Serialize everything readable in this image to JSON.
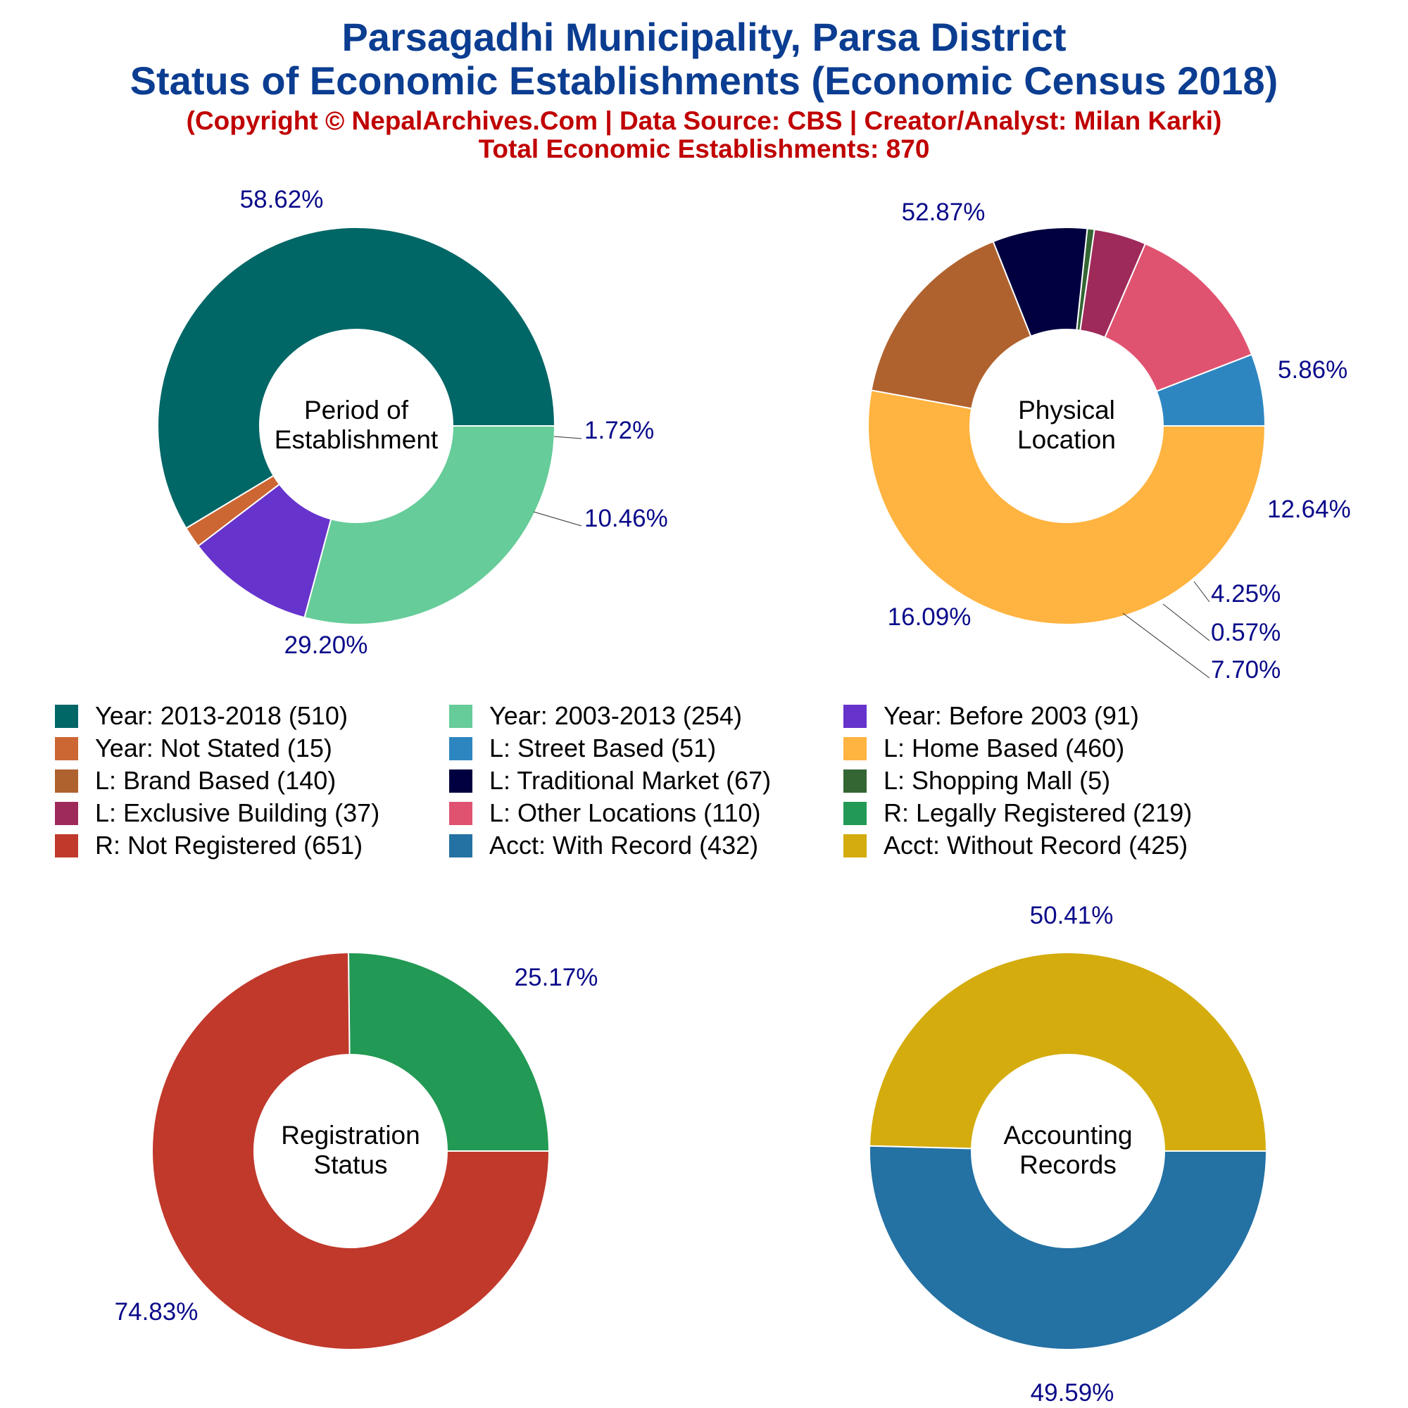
{
  "header": {
    "title_line1": "Parsagadhi Municipality, Parsa District",
    "title_line2": "Status of Economic Establishments (Economic Census 2018)",
    "copyright": "(Copyright © NepalArchives.Com | Data Source: CBS | Creator/Analyst: Milan Karki)",
    "total": "Total Economic Establishments: 870"
  },
  "colors": {
    "title": "#0b3d91",
    "subtitle": "#c00000",
    "percent_label": "#0a0a8a"
  },
  "chart_data": [
    {
      "type": "pie",
      "style": "donut",
      "center_label": [
        "Period of",
        "Establishment"
      ],
      "slices": [
        {
          "label": "Year: 2013-2018",
          "value": 510,
          "percent_label": "58.62%",
          "color": "#006666"
        },
        {
          "label": "Year: Not Stated",
          "value": 15,
          "percent_label": "1.72%",
          "color": "#cc6633"
        },
        {
          "label": "Year: Before 2003",
          "value": 91,
          "percent_label": "10.46%",
          "color": "#6633cc"
        },
        {
          "label": "Year: 2003-2013",
          "value": 254,
          "percent_label": "29.20%",
          "color": "#66cc99"
        }
      ]
    },
    {
      "type": "pie",
      "style": "donut",
      "center_label": [
        "Physical",
        "Location"
      ],
      "slices": [
        {
          "label": "L: Street Based",
          "value": 51,
          "percent_label": "5.86%",
          "color": "#2e86c1"
        },
        {
          "label": "L: Other Locations",
          "value": 110,
          "percent_label": "12.64%",
          "color": "#e05370"
        },
        {
          "label": "L: Exclusive Building",
          "value": 37,
          "percent_label": "4.25%",
          "color": "#9e2a5a"
        },
        {
          "label": "L: Shopping Mall",
          "value": 5,
          "percent_label": "0.57%",
          "color": "#336633"
        },
        {
          "label": "L: Traditional Market",
          "value": 67,
          "percent_label": "7.70%",
          "color": "#000040"
        },
        {
          "label": "L: Brand Based",
          "value": 140,
          "percent_label": "16.09%",
          "color": "#b0622e"
        },
        {
          "label": "L: Home Based",
          "value": 460,
          "percent_label": "52.87%",
          "color": "#ffb340"
        }
      ]
    },
    {
      "type": "pie",
      "style": "donut",
      "center_label": [
        "Registration",
        "Status"
      ],
      "slices": [
        {
          "label": "R: Legally Registered",
          "value": 219,
          "percent_label": "25.17%",
          "color": "#229954"
        },
        {
          "label": "R: Not Registered",
          "value": 651,
          "percent_label": "74.83%",
          "color": "#c0392b"
        }
      ]
    },
    {
      "type": "pie",
      "style": "donut",
      "center_label": [
        "Accounting",
        "Records"
      ],
      "slices": [
        {
          "label": "Acct: Without Record",
          "value": 425,
          "percent_label": "49.59%",
          "color": "#d4ac0d"
        },
        {
          "label": "Acct: With Record",
          "value": 432,
          "percent_label": "50.41%",
          "color": "#2471a3"
        }
      ]
    }
  ],
  "legend": [
    {
      "label": "Year: 2013-2018 (510)",
      "color": "#006666"
    },
    {
      "label": "Year: 2003-2013 (254)",
      "color": "#66cc99"
    },
    {
      "label": "Year: Before 2003 (91)",
      "color": "#6633cc"
    },
    {
      "label": "Year: Not Stated (15)",
      "color": "#cc6633"
    },
    {
      "label": "L: Street Based (51)",
      "color": "#2e86c1"
    },
    {
      "label": "L: Home Based (460)",
      "color": "#ffb340"
    },
    {
      "label": "L: Brand Based (140)",
      "color": "#b0622e"
    },
    {
      "label": "L: Traditional Market (67)",
      "color": "#000040"
    },
    {
      "label": "L: Shopping Mall (5)",
      "color": "#336633"
    },
    {
      "label": "L: Exclusive Building (37)",
      "color": "#9e2a5a"
    },
    {
      "label": "L: Other Locations (110)",
      "color": "#e05370"
    },
    {
      "label": "R: Legally Registered (219)",
      "color": "#229954"
    },
    {
      "label": "R: Not Registered (651)",
      "color": "#c0392b"
    },
    {
      "label": "Acct: With Record (432)",
      "color": "#2471a3"
    },
    {
      "label": "Acct: Without Record (425)",
      "color": "#d4ac0d"
    }
  ]
}
